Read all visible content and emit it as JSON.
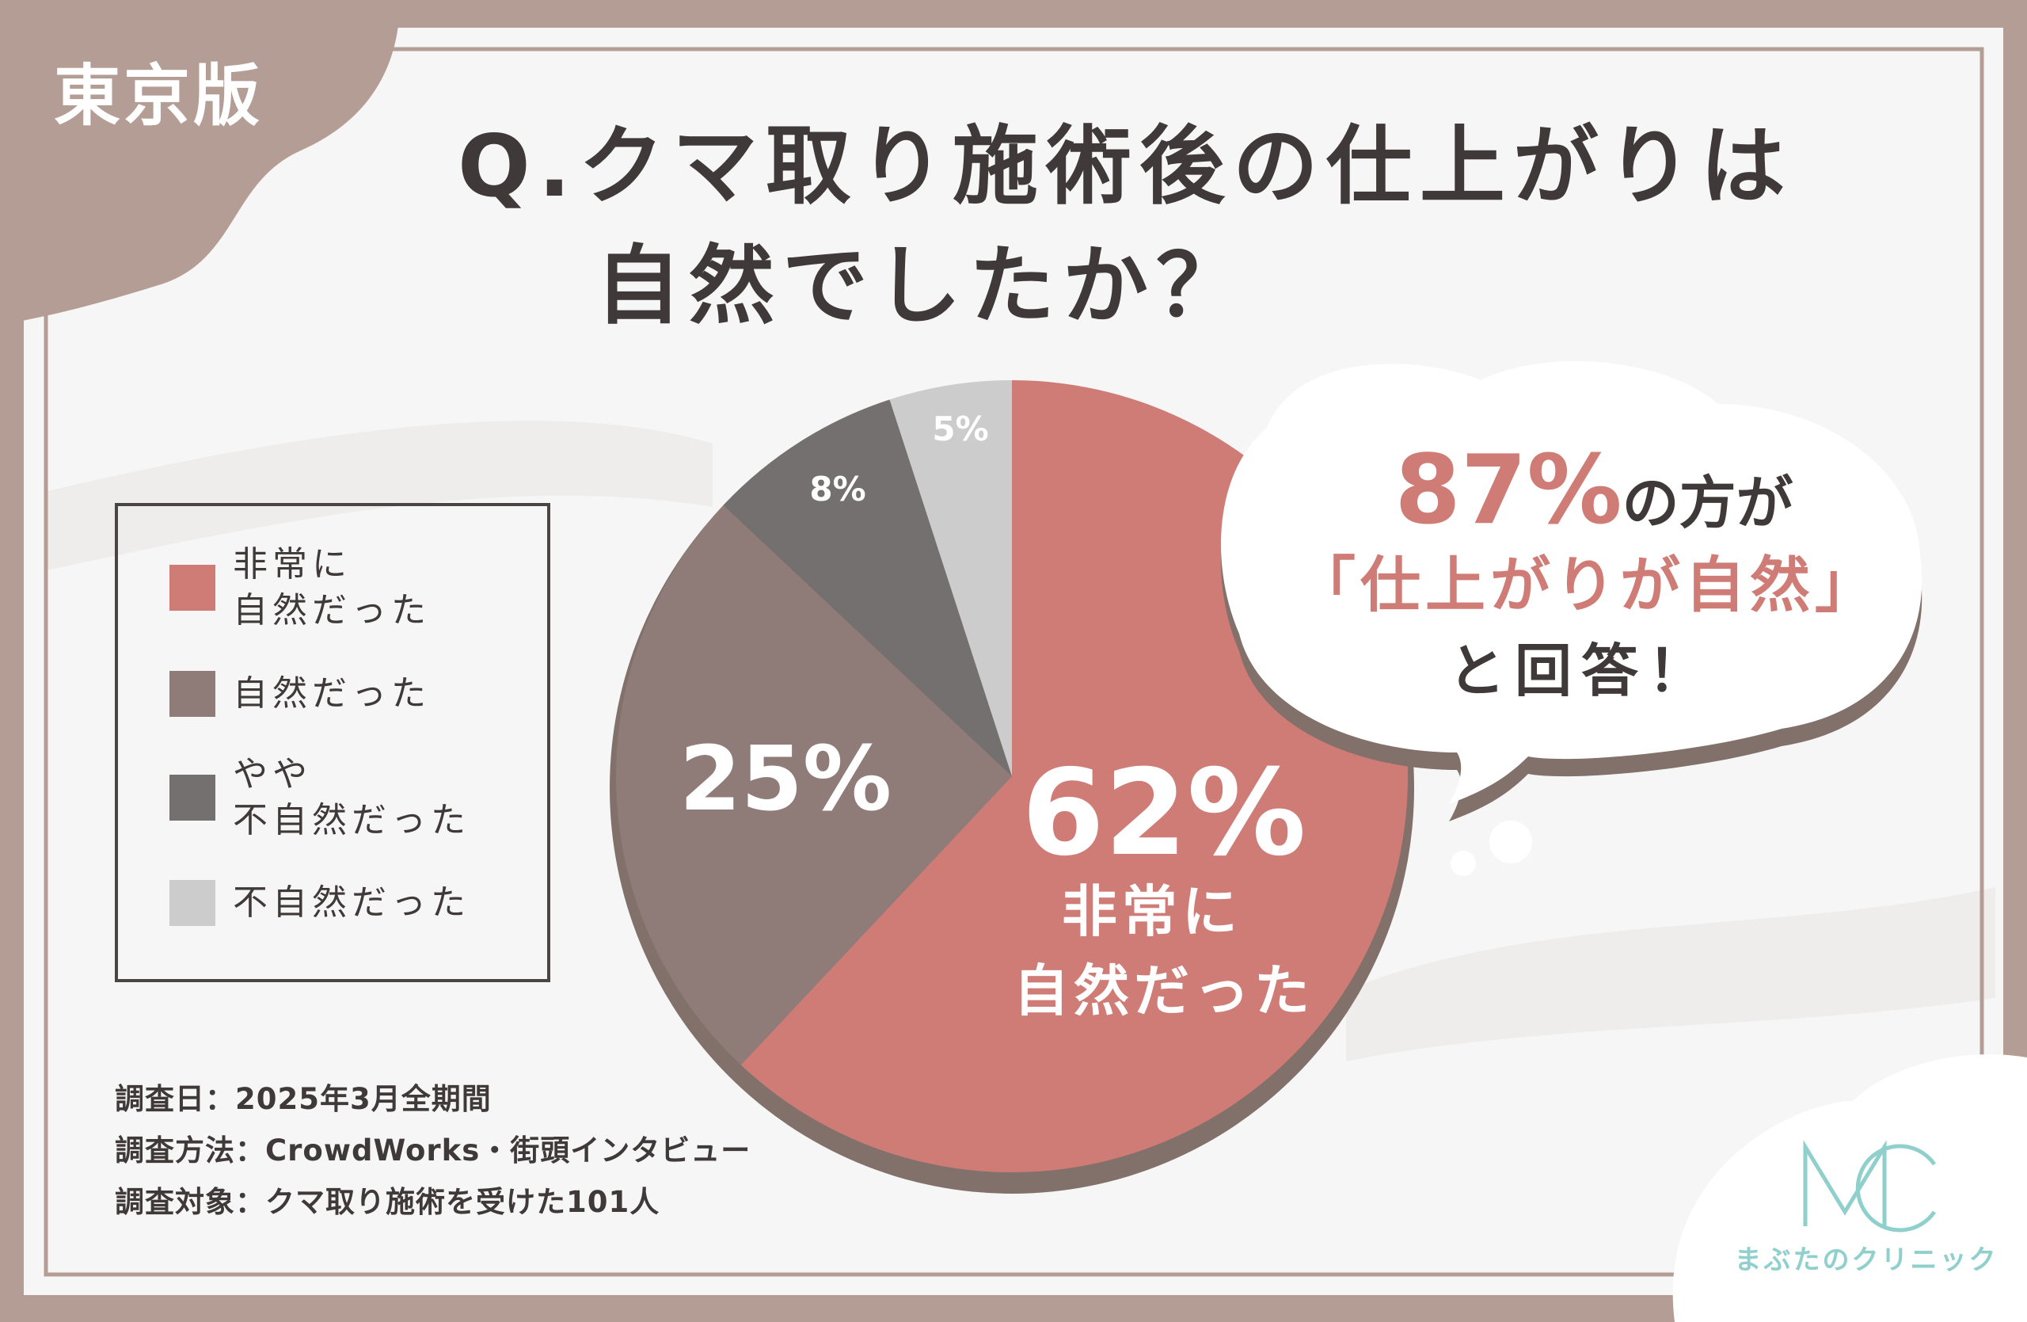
{
  "badge": "東京版",
  "title": {
    "line1": "Q.クマ取り施術後の仕上がりは",
    "line2": "自然でしたか？"
  },
  "chart_data": {
    "type": "pie",
    "categories": [
      "非常に自然だった",
      "自然だった",
      "やや不自然だった",
      "不自然だった"
    ],
    "values": [
      62,
      25,
      8,
      5
    ],
    "unit": "%",
    "slice_labels": [
      "62%",
      "25%",
      "8%",
      "5%"
    ],
    "highlight_label": "非常に\n自然だった",
    "colors": [
      "#d07c76",
      "#8f7b78",
      "#747070",
      "#cdcccc"
    ]
  },
  "legend": {
    "items": [
      {
        "label": "非常に\n自然だった",
        "color": "#d07c76"
      },
      {
        "label": "自然だった",
        "color": "#8f7b78"
      },
      {
        "label": "やや\n不自然だった",
        "color": "#747070"
      },
      {
        "label": "不自然だった",
        "color": "#cdcccc"
      }
    ]
  },
  "callout": {
    "percent": "87%",
    "line1_suffix": "の方が",
    "line2": "「仕上がりが自然」",
    "line3": "と回答！"
  },
  "survey": {
    "date": "調査日：2025年3月全期間",
    "method": "調査方法：CrowdWorks・街頭インタビュー",
    "target": "調査対象：クマ取り施術を受けた101人"
  },
  "logo": {
    "mark": "MC",
    "name": "まぶたのクリニック"
  },
  "colors": {
    "frame": "#b49d95",
    "accent": "#d07c76",
    "text": "#3f3a39",
    "logo": "#8fcfcc"
  }
}
